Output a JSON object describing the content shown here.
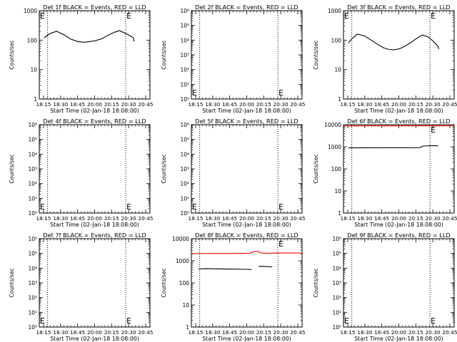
{
  "colors": {
    "events": "#000000",
    "lld": "#ff0000",
    "axis": "#000000"
  },
  "shared": {
    "xlabel": "Start Time (02-Jan-18 18:08:00)",
    "ylabel": "Counts/sec",
    "xtick_labels": [
      "18:15",
      "18:30",
      "18:45",
      "20:00",
      "20:15",
      "20:30",
      "20:45"
    ],
    "x_range_minutes": [
      0,
      160
    ],
    "vertical_dotted_lines_minutes": [
      12,
      125
    ]
  },
  "chart_data": [
    {
      "type": "line",
      "title": "Det 1f BLACK = Events, RED = LLD",
      "ylabel": "Counts/sec",
      "xlabel": "Start Time (02-Jan-18 18:08:00)",
      "ylim": [
        1,
        1000
      ],
      "yscale": "log",
      "ytick_labels": [
        "1",
        "10",
        "100",
        "1000"
      ],
      "series": [
        {
          "role": "events",
          "x": [
            7,
            15,
            25,
            35,
            45,
            55,
            65,
            72,
            80,
            90,
            98,
            104,
            110,
            116,
            122,
            127,
            131,
            134,
            136,
            137
          ],
          "values": [
            120,
            165,
            200,
            155,
            110,
            90,
            85,
            88,
            95,
            110,
            140,
            165,
            190,
            210,
            180,
            160,
            140,
            130,
            120,
            90
          ]
        }
      ],
      "annotations": [
        "E",
        "E"
      ]
    },
    {
      "type": "line",
      "title": "Det 2f BLACK = Events, RED = LLD",
      "ylabel": "Counts/sec",
      "xlabel": "Start Time (02-Jan-18 18:08:00)",
      "ylim": [
        1,
        1000000
      ],
      "yscale": "log",
      "ytick_labels": [
        "10⁰",
        "10¹",
        "10²",
        "10³",
        "10⁴",
        "10⁵",
        "10⁶"
      ],
      "series": [],
      "annotations": [
        "E",
        "E"
      ]
    },
    {
      "type": "line",
      "title": "Det 3f BLACK = Events, RED = LLD",
      "ylabel": "Counts/sec",
      "xlabel": "Start Time (02-Jan-18 18:08:00)",
      "ylim": [
        1,
        1000
      ],
      "yscale": "log",
      "ytick_labels": [
        "1",
        "10",
        "100",
        "1000"
      ],
      "series": [
        {
          "role": "events",
          "x": [
            7,
            12,
            20,
            30,
            40,
            50,
            58,
            66,
            74,
            82,
            90,
            98,
            106,
            114,
            122,
            128,
            132,
            136,
            138
          ],
          "values": [
            80,
            110,
            160,
            140,
            100,
            70,
            55,
            48,
            47,
            52,
            65,
            85,
            115,
            150,
            130,
            100,
            80,
            65,
            50
          ]
        }
      ],
      "annotations": [
        "E",
        "E"
      ]
    },
    {
      "type": "line",
      "title": "Det 4f BLACK = Events, RED = LLD",
      "ylabel": "Counts/sec",
      "xlabel": "Start Time (02-Jan-18 18:08:00)",
      "ylim": [
        1,
        1000000
      ],
      "yscale": "log",
      "ytick_labels": [
        "10⁰",
        "10¹",
        "10²",
        "10³",
        "10⁴",
        "10⁵",
        "10⁶"
      ],
      "series": [],
      "annotations": [
        "E",
        "E"
      ]
    },
    {
      "type": "line",
      "title": "Det 5f BLACK = Events, RED = LLD",
      "ylabel": "Counts/sec",
      "xlabel": "Start Time (02-Jan-18 18:08:00)",
      "ylim": [
        1,
        1000000
      ],
      "yscale": "log",
      "ytick_labels": [
        "10⁰",
        "10¹",
        "10²",
        "10³",
        "10⁴",
        "10⁵",
        "10⁶"
      ],
      "series": [],
      "annotations": [
        "E",
        "E"
      ]
    },
    {
      "type": "line",
      "title": "Det 6f BLACK = Events, RED = LLD",
      "ylabel": "Counts/sec",
      "xlabel": "Start Time (02-Jan-18 18:08:00)",
      "ylim": [
        1,
        10000
      ],
      "yscale": "log",
      "ytick_labels": [
        "1",
        "10",
        "100",
        "1000",
        "10000"
      ],
      "series": [
        {
          "role": "lld",
          "x": [
            0,
            20,
            40,
            60,
            80,
            100,
            120,
            140,
            160
          ],
          "values": [
            8800,
            8800,
            8850,
            8800,
            8850,
            8900,
            8850,
            8900,
            8950
          ]
        },
        {
          "role": "events",
          "x": [
            7,
            30,
            60,
            90,
            110,
            113,
            115,
            125,
            137
          ],
          "values": [
            900,
            900,
            905,
            910,
            915,
            990,
            1080,
            1120,
            1100
          ]
        }
      ],
      "annotations": [
        "E"
      ]
    },
    {
      "type": "line",
      "title": "Det 7f BLACK = Events, RED = LLD",
      "ylabel": "Counts/sec",
      "xlabel": "Start Time (02-Jan-18 18:08:00)",
      "ylim": [
        1,
        1000000
      ],
      "yscale": "log",
      "ytick_labels": [
        "10⁰",
        "10¹",
        "10²",
        "10³",
        "10⁴",
        "10⁵",
        "10⁶"
      ],
      "series": [],
      "annotations": [
        "E",
        "E"
      ]
    },
    {
      "type": "line",
      "title": "Det 8f BLACK = Events, RED = LLD",
      "ylabel": "Counts/sec",
      "xlabel": "Start Time (02-Jan-18 18:08:00)",
      "ylim": [
        1,
        10000
      ],
      "yscale": "log",
      "ytick_labels": [
        "1",
        "10",
        "100",
        "1000",
        "10000"
      ],
      "series": [
        {
          "role": "lld",
          "x": [
            0,
            30,
            60,
            85,
            90,
            96,
            100,
            110,
            130,
            160
          ],
          "values": [
            2100,
            2150,
            2150,
            2200,
            2600,
            2700,
            2250,
            2200,
            2250,
            2250
          ]
        },
        {
          "role": "events",
          "x": [
            10,
            20,
            40,
            60,
            80,
            87
          ],
          "values": [
            420,
            440,
            430,
            420,
            410,
            400
          ]
        },
        {
          "role": "events",
          "x": [
            97,
            103,
            110,
            117
          ],
          "values": [
            560,
            560,
            545,
            530
          ]
        }
      ],
      "annotations": [
        "E"
      ]
    },
    {
      "type": "line",
      "title": "Det 9f BLACK = Events, RED = LLD",
      "ylabel": "Counts/sec",
      "xlabel": "Start Time (02-Jan-18 18:08:00)",
      "ylim": [
        1,
        1000000
      ],
      "yscale": "log",
      "ytick_labels": [
        "10⁰",
        "10¹",
        "10²",
        "10³",
        "10⁴",
        "10⁵",
        "10⁶"
      ],
      "series": [],
      "annotations": [
        "E",
        "E"
      ]
    }
  ]
}
